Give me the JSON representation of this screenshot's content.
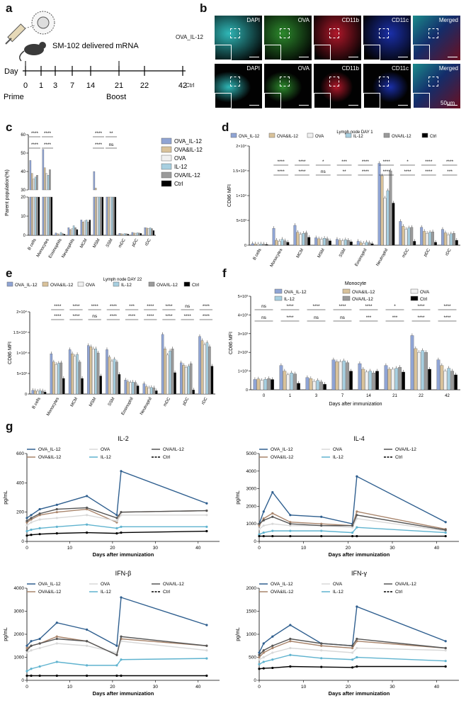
{
  "panels": {
    "a": "a",
    "b": "b",
    "c": "c",
    "d": "d",
    "e": "e",
    "f": "f",
    "g": "g"
  },
  "panel_a": {
    "delivery_label": "SM-102 delivered mRNA",
    "day_label": "Day",
    "timeline_days": [
      "0",
      "1",
      "3",
      "7",
      "14",
      "21",
      "22",
      "42"
    ],
    "prime_label": "Prime",
    "boost_label": "Boost"
  },
  "panel_b": {
    "rows": [
      "OVA_IL-12",
      "Ctrl"
    ],
    "channels": [
      "DAPI",
      "OVA",
      "CD11b",
      "CD11c",
      "Merged"
    ],
    "scale_label": "50μm",
    "channel_colors": [
      "#2fb7b7",
      "#2d8a2d",
      "#b0182a",
      "#1a2fa8",
      "#3c6a9a"
    ]
  },
  "legend_groups": [
    "OVA_IL-12",
    "OVA&IL-12",
    "OVA",
    "IL-12",
    "OVA/IL-12",
    "Ctrl"
  ],
  "group_colors": [
    "#8fa4d4",
    "#d9c29a",
    "#f0f0f0",
    "#a7cfe0",
    "#9a9a9a",
    "#000000"
  ],
  "chart_data": [
    {
      "id": "c",
      "type": "bar",
      "ylabel": "Parent population(%)",
      "categories": [
        "B cells",
        "Monocytes",
        "Eosinophils",
        "Neutrophils",
        "MCM",
        "MSM",
        "SSM",
        "mDC",
        "pDC",
        "rDC"
      ],
      "yticks_low": [
        "0",
        "10",
        "20"
      ],
      "yticks_high": [
        "30",
        "40",
        "50",
        "60"
      ],
      "sig_top": [
        "****",
        "****",
        "",
        "",
        "",
        "****",
        "**",
        "",
        "",
        ""
      ],
      "sig_mid": [
        "****",
        "****",
        "",
        "",
        "",
        "****",
        "ns",
        "",
        "",
        ""
      ],
      "series": [
        {
          "name": "OVA_IL-12",
          "values": [
            46,
            52,
            1.2,
            4,
            8,
            40,
            29,
            1,
            1.5,
            4
          ]
        },
        {
          "name": "OVA&IL-12",
          "values": [
            39,
            42,
            0.8,
            3,
            7,
            31,
            27,
            0.8,
            1.2,
            3.8
          ]
        },
        {
          "name": "OVA",
          "values": [
            36,
            39,
            0.7,
            3.5,
            7.5,
            29,
            26,
            0.7,
            1.1,
            3.6
          ]
        },
        {
          "name": "IL-12",
          "values": [
            37,
            38,
            1.5,
            5,
            8,
            27,
            26,
            0.9,
            1.3,
            3.9
          ]
        },
        {
          "name": "OVA/IL-12",
          "values": [
            38,
            41,
            0.9,
            4,
            7,
            28,
            25,
            0.8,
            1.2,
            3.5
          ]
        },
        {
          "name": "Ctrl",
          "values": [
            30,
            30,
            0.6,
            3,
            8,
            24,
            24,
            0.6,
            1,
            2.5
          ]
        }
      ]
    },
    {
      "id": "d",
      "type": "bar",
      "title": "Lymph node DAY 1",
      "ylabel": "CD86 MFI",
      "categories": [
        "B cells",
        "Monocytes",
        "MCM",
        "MSM",
        "SSM",
        "Eosinophil",
        "Neutrophil",
        "mDC",
        "pDC",
        "rDC"
      ],
      "yticks": [
        "0",
        "5×10³",
        "1×10⁴",
        "1.5×10⁴",
        "2×10⁴"
      ],
      "ylim": [
        0,
        20000
      ],
      "sig_top": [
        "",
        "****",
        "****",
        "*",
        "***",
        "****",
        "****",
        "*",
        "****",
        "****"
      ],
      "sig_mid": [
        "",
        "****",
        "****",
        "ns",
        "**",
        "****",
        "****",
        "****",
        "****",
        "***"
      ],
      "series": [
        {
          "name": "OVA_IL-12",
          "values": [
            300,
            3400,
            4000,
            1500,
            1200,
            800,
            16500,
            4800,
            3600,
            3200
          ]
        },
        {
          "name": "OVA&IL-12",
          "values": [
            250,
            1000,
            2600,
            1300,
            1000,
            500,
            14000,
            3800,
            2800,
            2500
          ]
        },
        {
          "name": "OVA",
          "values": [
            200,
            800,
            2200,
            1200,
            900,
            400,
            9500,
            3200,
            2400,
            2100
          ]
        },
        {
          "name": "IL-12",
          "values": [
            250,
            1200,
            2400,
            1400,
            1100,
            600,
            11000,
            3500,
            2600,
            2300
          ]
        },
        {
          "name": "OVA/IL-12",
          "values": [
            220,
            900,
            2500,
            1300,
            1000,
            500,
            15000,
            3600,
            2700,
            2400
          ]
        },
        {
          "name": "Ctrl",
          "values": [
            150,
            600,
            1600,
            900,
            700,
            300,
            8500,
            800,
            600,
            1000
          ]
        }
      ]
    },
    {
      "id": "e",
      "type": "bar",
      "title": "Lymph node DAY 22",
      "ylabel": "CD86 MFI",
      "categories": [
        "B cells",
        "Monocytes",
        "MCM",
        "MSM",
        "SSM",
        "Eosinophil",
        "Neutrophil",
        "mDC",
        "pDC",
        "rDC"
      ],
      "yticks": [
        "0",
        "5×10³",
        "1×10⁴",
        "1.5×10⁴",
        "2×10⁴"
      ],
      "ylim": [
        0,
        20000
      ],
      "sig_top": [
        "",
        "****",
        "****",
        "****",
        "****",
        "***",
        "****",
        "****",
        "ns",
        "****"
      ],
      "sig_mid": [
        "",
        "****",
        "****",
        "ns",
        "****",
        "****",
        "****",
        "****",
        "****",
        "****"
      ],
      "series": [
        {
          "name": "OVA_IL-12",
          "values": [
            900,
            9800,
            10800,
            11800,
            10800,
            3400,
            2500,
            14500,
            7600,
            14000
          ]
        },
        {
          "name": "OVA&IL-12",
          "values": [
            800,
            7800,
            9800,
            11500,
            9000,
            3000,
            1800,
            11000,
            7000,
            13000
          ]
        },
        {
          "name": "OVA",
          "values": [
            700,
            7200,
            9200,
            11000,
            8000,
            2800,
            1500,
            9500,
            6500,
            12000
          ]
        },
        {
          "name": "IL-12",
          "values": [
            800,
            7500,
            9600,
            11000,
            8500,
            2900,
            1600,
            10500,
            6800,
            12500
          ]
        },
        {
          "name": "OVA/IL-12",
          "values": [
            750,
            7600,
            7800,
            10000,
            7800,
            2800,
            1500,
            11000,
            7400,
            11500
          ]
        },
        {
          "name": "Ctrl",
          "values": [
            500,
            3800,
            3800,
            4400,
            4800,
            2000,
            800,
            5200,
            1000,
            6800
          ]
        }
      ]
    },
    {
      "id": "f",
      "type": "bar",
      "title": "Monocyte",
      "ylabel": "CD86 MFI",
      "xlabel": "Days after immunization",
      "categories": [
        "0",
        "1",
        "3",
        "7",
        "14",
        "21",
        "22",
        "42"
      ],
      "yticks": [
        "0",
        "1×10³",
        "2×10³",
        "3×10³",
        "4×10³",
        "5×10³"
      ],
      "ylim": [
        0,
        5000
      ],
      "sig_top": [
        "ns",
        "****",
        "****",
        "****",
        "****",
        "*",
        "****",
        "****"
      ],
      "sig_mid": [
        "ns",
        "****",
        "ns",
        "ns",
        "***",
        "***",
        "****",
        "****"
      ],
      "series": [
        {
          "name": "OVA_IL-12",
          "values": [
            550,
            1300,
            650,
            1600,
            1400,
            1300,
            2900,
            1600
          ]
        },
        {
          "name": "OVA&IL-12",
          "values": [
            580,
            1000,
            600,
            1500,
            1100,
            1100,
            2200,
            1300
          ]
        },
        {
          "name": "OVA",
          "values": [
            500,
            800,
            450,
            1500,
            950,
            1100,
            2000,
            1000
          ]
        },
        {
          "name": "IL-12",
          "values": [
            560,
            900,
            500,
            1550,
            1000,
            1150,
            2100,
            1150
          ]
        },
        {
          "name": "OVA/IL-12",
          "values": [
            600,
            850,
            420,
            1450,
            900,
            1200,
            2000,
            1000
          ]
        },
        {
          "name": "Ctrl",
          "values": [
            550,
            350,
            300,
            1000,
            1000,
            950,
            1100,
            800
          ]
        }
      ]
    },
    {
      "id": "g1",
      "type": "line",
      "title": "IL-2",
      "ylabel": "pg/mL",
      "xlabel": "Days after immunization",
      "x": [
        0,
        1,
        3,
        7,
        14,
        21,
        22,
        42
      ],
      "xticks": [
        "0",
        "10",
        "20",
        "30",
        "40"
      ],
      "yticks": [
        "0",
        "200",
        "400",
        "600"
      ],
      "ylim": [
        0,
        600
      ],
      "series": [
        {
          "name": "OVA_IL-12",
          "color": "#2f5f8f",
          "values": [
            160,
            180,
            220,
            250,
            310,
            180,
            480,
            260
          ]
        },
        {
          "name": "OVA&IL-12",
          "color": "#a8846b",
          "values": [
            130,
            150,
            180,
            200,
            220,
            130,
            200,
            210
          ]
        },
        {
          "name": "OVA",
          "color": "#d8d8d8",
          "values": [
            110,
            130,
            150,
            160,
            180,
            140,
            180,
            180
          ]
        },
        {
          "name": "IL-12",
          "color": "#5fb3cf",
          "values": [
            70,
            80,
            90,
            100,
            115,
            90,
            100,
            100
          ]
        },
        {
          "name": "OVA/IL-12",
          "color": "#555555",
          "values": [
            140,
            160,
            190,
            220,
            230,
            160,
            200,
            210
          ]
        },
        {
          "name": "Ctrl",
          "color": "#000000",
          "values": [
            40,
            45,
            50,
            55,
            60,
            55,
            60,
            70
          ]
        }
      ]
    },
    {
      "id": "g2",
      "type": "line",
      "title": "IL-4",
      "ylabel": "pg/mL",
      "xlabel": "Days after immunization",
      "x": [
        0,
        1,
        3,
        7,
        14,
        21,
        22,
        42
      ],
      "xticks": [
        "0",
        "10",
        "20",
        "30",
        "40"
      ],
      "yticks": [
        "0",
        "1000",
        "2000",
        "3000",
        "4000",
        "5000"
      ],
      "ylim": [
        0,
        5000
      ],
      "series": [
        {
          "name": "OVA_IL-12",
          "color": "#2f5f8f",
          "values": [
            1000,
            1700,
            2800,
            1500,
            1400,
            1000,
            3700,
            1100
          ]
        },
        {
          "name": "OVA&IL-12",
          "color": "#a8846b",
          "values": [
            900,
            1300,
            1600,
            1100,
            1000,
            900,
            1700,
            700
          ]
        },
        {
          "name": "OVA",
          "color": "#d8d8d8",
          "values": [
            700,
            900,
            1000,
            900,
            900,
            800,
            1300,
            600
          ]
        },
        {
          "name": "IL-12",
          "color": "#5fb3cf",
          "values": [
            400,
            500,
            600,
            600,
            600,
            500,
            800,
            500
          ]
        },
        {
          "name": "OVA/IL-12",
          "color": "#555555",
          "values": [
            1000,
            1200,
            1400,
            1000,
            900,
            900,
            1500,
            650
          ]
        },
        {
          "name": "Ctrl",
          "color": "#000000",
          "values": [
            300,
            300,
            300,
            300,
            300,
            300,
            300,
            300
          ]
        }
      ]
    },
    {
      "id": "g3",
      "type": "line",
      "title": "IFN-β",
      "ylabel": "pg/mL",
      "xlabel": "Days after immunization",
      "x": [
        0,
        1,
        3,
        7,
        14,
        21,
        22,
        42
      ],
      "xticks": [
        "0",
        "10",
        "20",
        "30",
        "40"
      ],
      "yticks": [
        "0",
        "1000",
        "2000",
        "3000",
        "4000"
      ],
      "ylim": [
        0,
        4000
      ],
      "series": [
        {
          "name": "OVA_IL-12",
          "color": "#2f5f8f",
          "values": [
            1500,
            1700,
            1800,
            2500,
            2200,
            1500,
            3600,
            2400
          ]
        },
        {
          "name": "OVA&IL-12",
          "color": "#a8846b",
          "values": [
            1400,
            1500,
            1600,
            1900,
            1700,
            1100,
            1800,
            1500
          ]
        },
        {
          "name": "OVA",
          "color": "#d8d8d8",
          "values": [
            1200,
            1300,
            1400,
            1600,
            1500,
            1200,
            1700,
            1300
          ]
        },
        {
          "name": "IL-12",
          "color": "#5fb3cf",
          "values": [
            400,
            500,
            600,
            800,
            650,
            650,
            900,
            950
          ]
        },
        {
          "name": "OVA/IL-12",
          "color": "#555555",
          "values": [
            1300,
            1500,
            1600,
            1800,
            1700,
            1100,
            1900,
            1500
          ]
        },
        {
          "name": "Ctrl",
          "color": "#000000",
          "values": [
            200,
            200,
            200,
            200,
            200,
            200,
            200,
            200
          ]
        }
      ]
    },
    {
      "id": "g4",
      "type": "line",
      "title": "IFN-γ",
      "ylabel": "pg/mL",
      "xlabel": "Days after immunization",
      "x": [
        0,
        1,
        3,
        7,
        14,
        21,
        22,
        42
      ],
      "xticks": [
        "0",
        "10",
        "20",
        "30",
        "40"
      ],
      "yticks": [
        "0",
        "500",
        "1000",
        "1500",
        "2000"
      ],
      "ylim": [
        0,
        2000
      ],
      "series": [
        {
          "name": "OVA_IL-12",
          "color": "#2f5f8f",
          "values": [
            600,
            800,
            950,
            1200,
            800,
            750,
            1600,
            850
          ]
        },
        {
          "name": "OVA&IL-12",
          "color": "#a8846b",
          "values": [
            500,
            600,
            700,
            850,
            750,
            700,
            850,
            700
          ]
        },
        {
          "name": "OVA",
          "color": "#d8d8d8",
          "values": [
            450,
            500,
            600,
            700,
            650,
            600,
            700,
            650
          ]
        },
        {
          "name": "IL-12",
          "color": "#5fb3cf",
          "values": [
            350,
            400,
            450,
            550,
            480,
            450,
            500,
            420
          ]
        },
        {
          "name": "OVA/IL-12",
          "color": "#555555",
          "values": [
            550,
            650,
            750,
            900,
            800,
            750,
            900,
            700
          ]
        },
        {
          "name": "Ctrl",
          "color": "#000000",
          "values": [
            250,
            260,
            270,
            300,
            290,
            280,
            300,
            300
          ]
        }
      ]
    }
  ]
}
